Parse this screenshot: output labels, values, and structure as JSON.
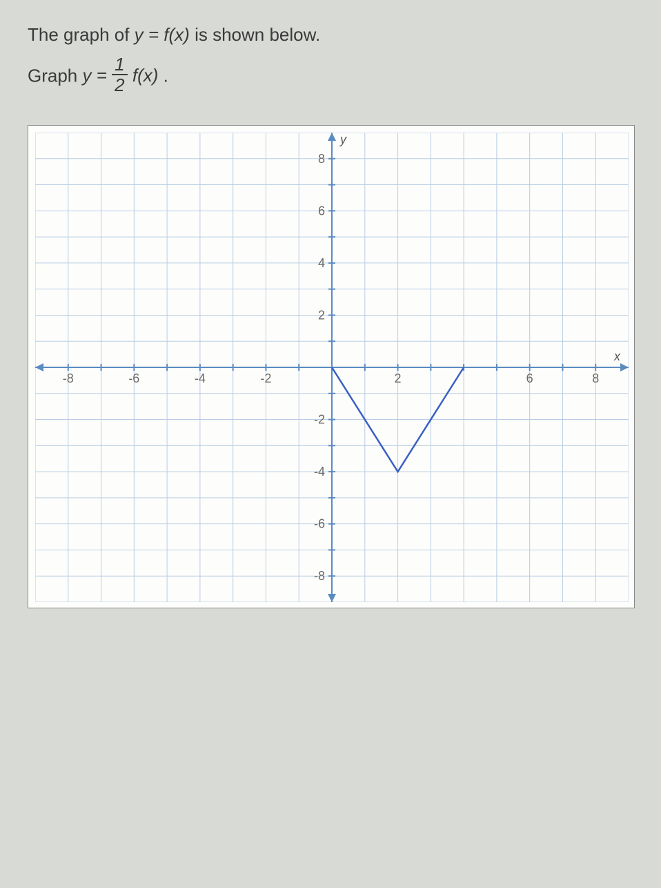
{
  "prompt": {
    "line1_prefix": "The graph of ",
    "line1_math": "y = f(x)",
    "line1_suffix": " is shown below.",
    "line2_prefix": "Graph ",
    "line2_math_lhs": "y = ",
    "fraction_num": "1",
    "fraction_den": "2",
    "line2_math_rhs": "f(x)",
    "line2_suffix": "."
  },
  "chart": {
    "type": "line",
    "xlim": [
      -9,
      9
    ],
    "ylim": [
      -9,
      9
    ],
    "xtick_step": 1,
    "ytick_step": 1,
    "xlabeled_ticks": [
      -8,
      -6,
      -4,
      -2,
      2,
      6,
      8
    ],
    "ylabeled_ticks": [
      -8,
      -6,
      -4,
      -2,
      2,
      4,
      6,
      8
    ],
    "x_axis_label": "x",
    "y_axis_label": "y",
    "grid_color": "#b8cde4",
    "axis_color": "#5a8bc0",
    "background_color": "#fdfdfb",
    "tick_label_color": "#6a6a6a",
    "tick_label_fontsize": 18,
    "function": {
      "points": [
        [
          0,
          0
        ],
        [
          2,
          -4
        ],
        [
          4,
          0
        ]
      ],
      "stroke_color": "#3a5fc4",
      "stroke_width": 2.5
    }
  }
}
